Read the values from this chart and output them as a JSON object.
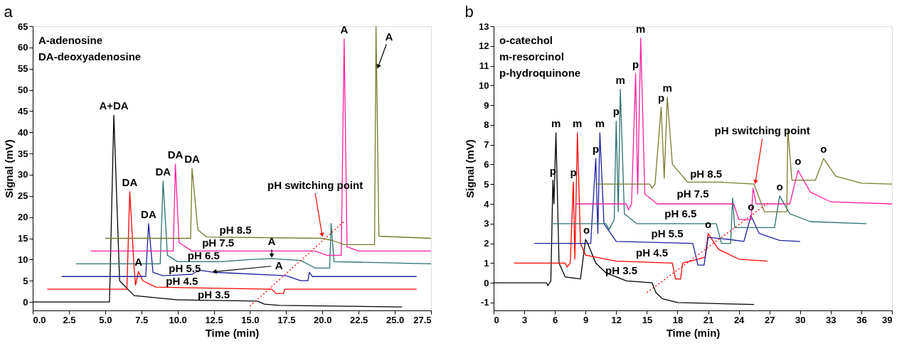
{
  "chart_data": [
    {
      "type": "line",
      "title": "a",
      "xlabel": "Time (min)",
      "ylabel": "Signal (mV)",
      "grid": false,
      "marker": "none",
      "line_style": "solid",
      "xlim": [
        0,
        27.5
      ],
      "xticks": [
        {
          "value": 0,
          "label": "0.0"
        },
        {
          "value": 2.5,
          "label": "2.5"
        },
        {
          "value": 5,
          "label": "5.0"
        },
        {
          "value": 7.5,
          "label": "7.5"
        },
        {
          "value": 10,
          "label": "10.0"
        },
        {
          "value": 12.5,
          "label": "12.5"
        },
        {
          "value": 15,
          "label": "15.0"
        },
        {
          "value": 17.5,
          "label": "17.5"
        },
        {
          "value": 20,
          "label": "20.0"
        },
        {
          "value": 22.5,
          "label": "22.5"
        },
        {
          "value": 25,
          "label": "25.0"
        },
        {
          "value": 27.5,
          "label": "27.5"
        }
      ],
      "ylim": [
        -2,
        65
      ],
      "yticks": [
        0,
        5,
        10,
        15,
        20,
        25,
        30,
        35,
        40,
        45,
        50,
        55,
        60,
        65
      ],
      "series": [
        {
          "name": "pH 3.5",
          "color": "#000000",
          "x": [
            0,
            5.3,
            5.6,
            6.0,
            7.0,
            10,
            15.5,
            16,
            17,
            25.5
          ],
          "values": [
            0,
            0,
            44,
            5,
            1.5,
            0.5,
            0.2,
            -0.5,
            -0.8,
            -1.2
          ]
        },
        {
          "name": "pH 4.5",
          "color": "#ff0000",
          "x": [
            1,
            6.5,
            6.7,
            7.0,
            7.1,
            7.3,
            7.6,
            8.5,
            16.5,
            16.8,
            17.3,
            17.4,
            26.5
          ],
          "values": [
            3,
            3,
            26,
            8,
            4,
            7.2,
            5,
            3.5,
            3,
            2,
            2,
            3,
            3
          ]
        },
        {
          "name": "pH 5.5",
          "color": "#1f1fa0",
          "x": [
            2,
            7.8,
            8.0,
            8.3,
            9,
            11,
            11.5,
            12.5,
            17.5,
            18.5,
            19,
            19.1,
            19.3,
            26.5
          ],
          "values": [
            6,
            6,
            18.5,
            7,
            6.2,
            6.5,
            7.5,
            7,
            6.2,
            5,
            5,
            7,
            6,
            6
          ]
        },
        {
          "name": "pH 6.5",
          "color": "#2e7070",
          "x": [
            3,
            8.8,
            9.0,
            9.3,
            10,
            13,
            15,
            16.5,
            18.5,
            19.5,
            20.5,
            20.6,
            20.8,
            27.5
          ],
          "values": [
            9,
            9,
            28.5,
            11,
            9.5,
            9.5,
            10,
            10.2,
            9.8,
            8,
            8,
            18.5,
            9.5,
            9
          ]
        },
        {
          "name": "pH 7.5",
          "color": "#ff1fa0",
          "x": [
            4,
            9.7,
            9.85,
            10.1,
            11,
            19.5,
            20.3,
            21.3,
            21.5,
            21.7,
            22.5,
            27.5
          ],
          "values": [
            12,
            12,
            32.5,
            14,
            12,
            12,
            11,
            11,
            62,
            13,
            12,
            12
          ]
        },
        {
          "name": "pH 8.5",
          "color": "#7a7a2e",
          "x": [
            5,
            10.9,
            11.0,
            11.4,
            12,
            20,
            20.7,
            21.5,
            23.6,
            23.7,
            23.9,
            27.5
          ],
          "values": [
            15,
            15,
            31.5,
            17,
            15.3,
            15,
            14.5,
            13.5,
            13.5,
            65,
            15.5,
            15
          ]
        },
        {
          "color": "#ff0000",
          "line_style": "dotted",
          "x": [
            15,
            21.5
          ],
          "values": [
            -1,
            19
          ]
        }
      ],
      "annotations": [
        "A-adenosine",
        "DA-deoxyadenosine",
        {
          "text": "A+DA",
          "x": 5.6,
          "y": 44
        },
        {
          "text": "DA",
          "x": 6.7,
          "y": 26
        },
        {
          "text": "A",
          "x": 7.3,
          "y": 7.2
        },
        {
          "text": "DA",
          "x": 8.0,
          "y": 18.5
        },
        {
          "text": "DA",
          "x": 9.0,
          "y": 28.5
        },
        {
          "text": "DA",
          "x": 9.85,
          "y": 32.5
        },
        {
          "text": "DA",
          "x": 11.0,
          "y": 31.5
        },
        {
          "text": "A",
          "x": 16.5,
          "y": 10.4
        },
        {
          "text": "A",
          "x": 12.4,
          "y": 7.1
        },
        {
          "text": "A",
          "x": 21.5,
          "y": 62
        },
        {
          "text": "A",
          "x": 23.8,
          "y": 55
        },
        {
          "text": "pH switching point",
          "x": 20,
          "y": 15.3
        }
      ]
    },
    {
      "type": "line",
      "title": "b",
      "xlabel": "Time (min)",
      "ylabel": "Signal (mV)",
      "grid": false,
      "marker": "none",
      "line_style": "solid",
      "xlim": [
        0,
        39
      ],
      "xticks": [
        0,
        3,
        6,
        9,
        12,
        15,
        18,
        21,
        24,
        27,
        30,
        33,
        36,
        39
      ],
      "ylim": [
        -1.4,
        13
      ],
      "yticks": [
        -1,
        0,
        1,
        2,
        3,
        4,
        5,
        6,
        7,
        8,
        9,
        10,
        11,
        12,
        13
      ],
      "series": [
        {
          "name": "pH 3.5",
          "color": "#000000",
          "x": [
            0,
            5.2,
            5.3,
            5.6,
            5.8,
            5.9,
            6.1,
            6.4,
            7,
            8.5,
            9.0,
            9.2,
            10,
            11,
            13,
            15.5,
            15.9,
            16.5,
            18,
            25.5
          ],
          "values": [
            0,
            0,
            -0.15,
            0.1,
            5.2,
            4,
            7.6,
            1.0,
            0.3,
            0.2,
            2.2,
            2.0,
            1.0,
            0.5,
            0.1,
            0,
            -0.5,
            -0.8,
            -1.0,
            -1.1
          ]
        },
        {
          "name": "pH 4.5",
          "color": "#ff0000",
          "x": [
            2,
            7.0,
            7.2,
            7.5,
            7.8,
            7.95,
            8.2,
            8.5,
            9,
            12,
            17.5,
            17.8,
            18.3,
            18.5,
            20,
            20.7,
            21.0,
            22,
            24,
            26.8
          ],
          "values": [
            1,
            1,
            0.8,
            1,
            5.1,
            1.2,
            7.6,
            2.0,
            1.4,
            1.1,
            1.0,
            0.2,
            0.2,
            1.0,
            1.2,
            1.3,
            2.5,
            1.7,
            1.2,
            1.1
          ]
        },
        {
          "name": "pH 5.5",
          "color": "#1f1fa0",
          "x": [
            4,
            9.5,
            10.0,
            10.2,
            10.4,
            10.8,
            12,
            19.5,
            20,
            20.6,
            21,
            23,
            24.5,
            25.2,
            26,
            28,
            30
          ],
          "values": [
            2,
            2,
            6.3,
            2.5,
            7.6,
            3,
            2.1,
            2.0,
            0.9,
            0.9,
            2.3,
            2.2,
            2.1,
            3.4,
            2.5,
            2.15,
            2.1
          ]
        },
        {
          "name": "pH 6.5",
          "color": "#2e7070",
          "x": [
            5.8,
            11,
            11.3,
            11.8,
            12.0,
            12.2,
            12.4,
            12.8,
            14,
            21.8,
            22.3,
            23.2,
            23.4,
            23.6,
            27.5,
            28,
            29,
            31,
            36.5
          ],
          "values": [
            3,
            3,
            2.7,
            3.2,
            8.2,
            3.6,
            9.8,
            3.5,
            3.0,
            3.0,
            2.0,
            2.0,
            4.3,
            2.8,
            2.8,
            4.4,
            3.5,
            3.1,
            3.0
          ]
        },
        {
          "name": "pH 7.5",
          "color": "#ff1fa0",
          "x": [
            8,
            13,
            13.2,
            13.5,
            13.9,
            14.1,
            14.4,
            14.8,
            16,
            23.5,
            24,
            25.2,
            25.4,
            25.7,
            29,
            29.8,
            31,
            33,
            39
          ],
          "values": [
            4,
            4,
            3.7,
            4,
            10.6,
            4.5,
            12.4,
            4.5,
            4.0,
            4.0,
            3.2,
            3.2,
            4.8,
            4.0,
            4.0,
            5.7,
            4.6,
            4.1,
            4.0
          ]
        },
        {
          "name": "pH 8.5",
          "color": "#7a7a2e",
          "x": [
            10,
            15.3,
            15.5,
            15.8,
            16.4,
            16.7,
            17.0,
            17.5,
            19,
            22.3,
            25.5,
            26.5,
            28.7,
            28.8,
            29.2,
            31.5,
            32.3,
            33.5,
            36,
            39
          ],
          "values": [
            5,
            5,
            4.8,
            5,
            8.9,
            5.3,
            9.4,
            6,
            5.1,
            5.1,
            5.0,
            3.6,
            3.6,
            7.8,
            5.2,
            5.2,
            6.3,
            5.4,
            5.05,
            5.0
          ]
        },
        {
          "color": "#ff0000",
          "line_style": "dotted",
          "x": [
            15,
            27
          ],
          "values": [
            -0.5,
            4.1
          ]
        }
      ],
      "annotations": [
        "o-catechol",
        "m-resorcinol",
        "p-hydroquinone",
        {
          "text": "p",
          "x": 5.8,
          "y": 5.2
        },
        {
          "text": "m",
          "x": 6.1,
          "y": 7.6
        },
        {
          "text": "o",
          "x": 9.1,
          "y": 2.2
        },
        {
          "text": "p",
          "x": 7.8,
          "y": 5.1
        },
        {
          "text": "m",
          "x": 8.2,
          "y": 7.6
        },
        {
          "text": "p",
          "x": 10.0,
          "y": 6.3
        },
        {
          "text": "m",
          "x": 10.4,
          "y": 7.6
        },
        {
          "text": "p",
          "x": 12.0,
          "y": 8.2
        },
        {
          "text": "m",
          "x": 12.4,
          "y": 9.8
        },
        {
          "text": "p",
          "x": 13.9,
          "y": 10.6
        },
        {
          "text": "m",
          "x": 14.4,
          "y": 12.4
        },
        {
          "text": "p",
          "x": 16.4,
          "y": 8.9
        },
        {
          "text": "m",
          "x": 17.0,
          "y": 9.4
        },
        {
          "text": "o",
          "x": 21.0,
          "y": 2.5
        },
        {
          "text": "o",
          "x": 25.2,
          "y": 3.4
        },
        {
          "text": "o",
          "x": 28.0,
          "y": 4.4
        },
        {
          "text": "o",
          "x": 29.8,
          "y": 5.7
        },
        {
          "text": "o",
          "x": 32.3,
          "y": 6.3
        },
        {
          "text": "pH switching point",
          "x": 25.6,
          "y": 5.0
        }
      ]
    }
  ]
}
